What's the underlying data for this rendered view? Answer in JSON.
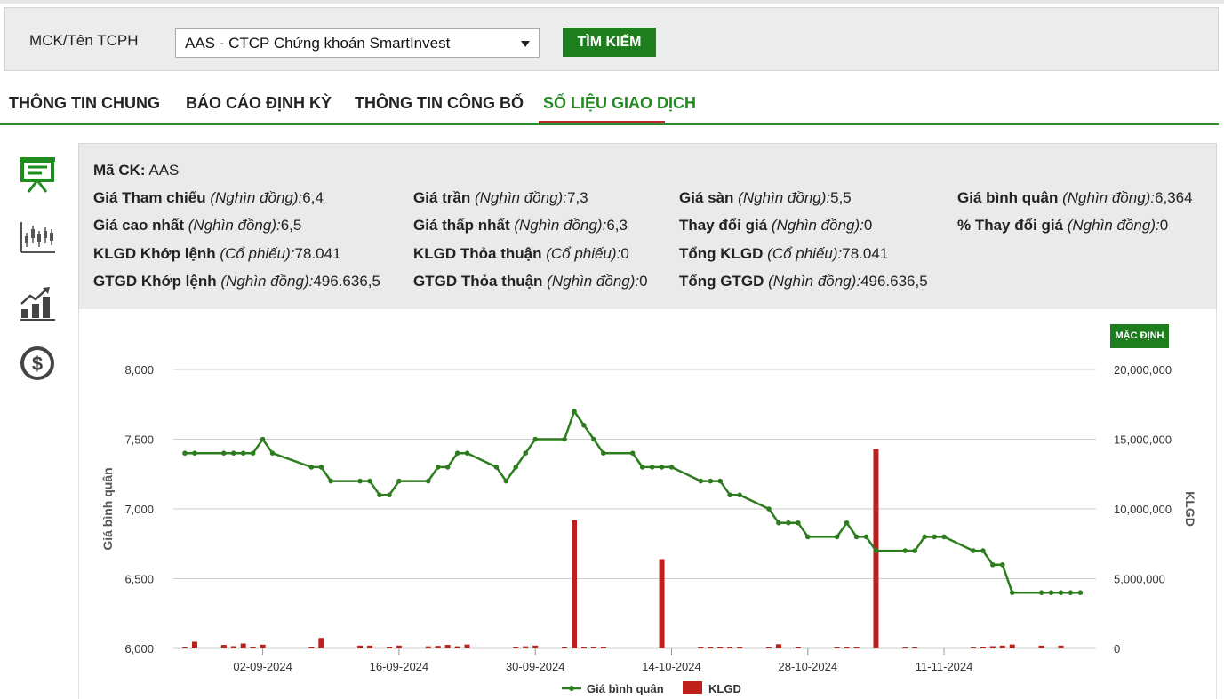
{
  "search": {
    "label": "MCK/Tên TCPH",
    "selected": "AAS - CTCP Chứng khoán SmartInvest",
    "button": "TÌM KIẾM"
  },
  "tabs": [
    {
      "label": "THÔNG TIN CHUNG",
      "active": false
    },
    {
      "label": "BÁO CÁO ĐỊNH KỲ",
      "active": false
    },
    {
      "label": "THÔNG TIN CÔNG BỐ",
      "active": false
    },
    {
      "label": "SỐ LIỆU GIAO DỊCH",
      "active": true
    }
  ],
  "side_icons": [
    "presentation-board-icon",
    "candlestick-chart-icon",
    "bar-chart-growth-icon",
    "dollar-coin-icon"
  ],
  "info": {
    "ma_ck": {
      "label": "Mã CK:",
      "value": "AAS"
    },
    "gia_tham_chieu": {
      "label": "Giá Tham chiếu",
      "unit": "(Nghìn đồng):",
      "value": "6,4"
    },
    "gia_tran": {
      "label": "Giá trần",
      "unit": "(Nghìn đồng):",
      "value": "7,3"
    },
    "gia_san": {
      "label": "Giá sàn",
      "unit": "(Nghìn đồng):",
      "value": "5,5"
    },
    "gia_binh_quan": {
      "label": "Giá bình quân",
      "unit": "(Nghìn đồng):",
      "value": "6,364"
    },
    "gia_cao_nhat": {
      "label": "Giá cao nhất",
      "unit": "(Nghìn đồng):",
      "value": "6,5"
    },
    "gia_thap_nhat": {
      "label": "Giá thấp nhất",
      "unit": "(Nghìn đồng):",
      "value": "6,3"
    },
    "thay_doi_gia": {
      "label": "Thay đổi giá",
      "unit": "(Nghìn đồng):",
      "value": "0"
    },
    "pct_thay_doi_gia": {
      "label": "% Thay đổi giá",
      "unit": "(Nghìn đồng):",
      "value": "0"
    },
    "klgd_khop_lenh": {
      "label": "KLGD Khớp lệnh",
      "unit": "(Cổ phiếu):",
      "value": "78.041"
    },
    "klgd_thoa_thuan": {
      "label": "KLGD Thỏa thuận",
      "unit": "(Cổ phiếu):",
      "value": "0"
    },
    "tong_klgd": {
      "label": "Tổng KLGD",
      "unit": "(Cổ phiếu):",
      "value": "78.041"
    },
    "gtgd_khop_lenh": {
      "label": "GTGD Khớp lệnh",
      "unit": "(Nghìn đồng):",
      "value": "496.636,5"
    },
    "gtgd_thoa_thuan": {
      "label": "GTGD Thỏa thuận",
      "unit": "(Nghìn đồng):",
      "value": "0"
    },
    "tong_gtgd": {
      "label": "Tổng GTGD",
      "unit": "(Nghìn đồng):",
      "value": "496.636,5"
    }
  },
  "chart": {
    "default_button": "MẶC ĐỊNH",
    "colors": {
      "line": "#2d7d1f",
      "bar": "#c0201c",
      "grid": "#cccccc"
    }
  },
  "chart_data": {
    "type": "bar+line",
    "title": "",
    "ylabel": "Giá bình quân",
    "y2label": "KLGD",
    "ylim": [
      6000,
      8000
    ],
    "y2lim": [
      0,
      20000000
    ],
    "yticks": [
      "8,000",
      "7,500",
      "7,000",
      "6,500",
      "6,000"
    ],
    "y2ticks": [
      "20,000,000",
      "15,000,000",
      "10,000,000",
      "5,000,000",
      "0"
    ],
    "xticks": [
      {
        "label": "02-09-2024",
        "day": 8
      },
      {
        "label": "16-09-2024",
        "day": 22
      },
      {
        "label": "30-09-2024",
        "day": 36
      },
      {
        "label": "14-10-2024",
        "day": 50
      },
      {
        "label": "28-10-2024",
        "day": 64
      },
      {
        "label": "11-11-2024",
        "day": 78
      }
    ],
    "x_start_date": "2024-08-25",
    "legend": [
      "Giá bình quân",
      "KLGD"
    ],
    "line": [
      [
        0,
        7400
      ],
      [
        1,
        7400
      ],
      [
        4,
        7400
      ],
      [
        5,
        7400
      ],
      [
        6,
        7400
      ],
      [
        7,
        7400
      ],
      [
        8,
        7500
      ],
      [
        9,
        7400
      ],
      [
        13,
        7300
      ],
      [
        14,
        7300
      ],
      [
        15,
        7200
      ],
      [
        18,
        7200
      ],
      [
        19,
        7200
      ],
      [
        20,
        7100
      ],
      [
        21,
        7100
      ],
      [
        22,
        7200
      ],
      [
        25,
        7200
      ],
      [
        26,
        7300
      ],
      [
        27,
        7300
      ],
      [
        28,
        7400
      ],
      [
        29,
        7400
      ],
      [
        32,
        7300
      ],
      [
        33,
        7200
      ],
      [
        34,
        7300
      ],
      [
        35,
        7400
      ],
      [
        36,
        7500
      ],
      [
        39,
        7500
      ],
      [
        40,
        7700
      ],
      [
        41,
        7600
      ],
      [
        42,
        7500
      ],
      [
        43,
        7400
      ],
      [
        46,
        7400
      ],
      [
        47,
        7300
      ],
      [
        48,
        7300
      ],
      [
        49,
        7300
      ],
      [
        50,
        7300
      ],
      [
        53,
        7200
      ],
      [
        54,
        7200
      ],
      [
        55,
        7200
      ],
      [
        56,
        7100
      ],
      [
        57,
        7100
      ],
      [
        60,
        7000
      ],
      [
        61,
        6900
      ],
      [
        62,
        6900
      ],
      [
        63,
        6900
      ],
      [
        64,
        6800
      ],
      [
        67,
        6800
      ],
      [
        68,
        6900
      ],
      [
        69,
        6800
      ],
      [
        70,
        6800
      ],
      [
        71,
        6700
      ],
      [
        74,
        6700
      ],
      [
        75,
        6700
      ],
      [
        76,
        6800
      ],
      [
        77,
        6800
      ],
      [
        78,
        6800
      ],
      [
        81,
        6700
      ],
      [
        82,
        6700
      ],
      [
        83,
        6600
      ],
      [
        84,
        6600
      ],
      [
        85,
        6400
      ],
      [
        88,
        6400
      ],
      [
        89,
        6400
      ],
      [
        90,
        6400
      ],
      [
        91,
        6400
      ],
      [
        92,
        6400
      ]
    ],
    "bars": [
      [
        0,
        80000
      ],
      [
        1,
        480000
      ],
      [
        4,
        250000
      ],
      [
        5,
        160000
      ],
      [
        6,
        350000
      ],
      [
        7,
        130000
      ],
      [
        8,
        270000
      ],
      [
        13,
        120000
      ],
      [
        14,
        750000
      ],
      [
        18,
        200000
      ],
      [
        19,
        200000
      ],
      [
        21,
        130000
      ],
      [
        22,
        200000
      ],
      [
        25,
        150000
      ],
      [
        26,
        180000
      ],
      [
        27,
        250000
      ],
      [
        28,
        150000
      ],
      [
        29,
        280000
      ],
      [
        34,
        120000
      ],
      [
        35,
        150000
      ],
      [
        36,
        200000
      ],
      [
        39,
        80000
      ],
      [
        40,
        9200000
      ],
      [
        41,
        120000
      ],
      [
        42,
        130000
      ],
      [
        43,
        130000
      ],
      [
        49,
        6400000
      ],
      [
        53,
        120000
      ],
      [
        54,
        120000
      ],
      [
        55,
        120000
      ],
      [
        56,
        120000
      ],
      [
        57,
        120000
      ],
      [
        60,
        80000
      ],
      [
        61,
        300000
      ],
      [
        63,
        120000
      ],
      [
        67,
        80000
      ],
      [
        68,
        120000
      ],
      [
        69,
        120000
      ],
      [
        71,
        14300000
      ],
      [
        74,
        60000
      ],
      [
        75,
        60000
      ],
      [
        81,
        60000
      ],
      [
        82,
        120000
      ],
      [
        83,
        160000
      ],
      [
        84,
        200000
      ],
      [
        85,
        280000
      ],
      [
        88,
        200000
      ],
      [
        90,
        200000
      ]
    ]
  }
}
